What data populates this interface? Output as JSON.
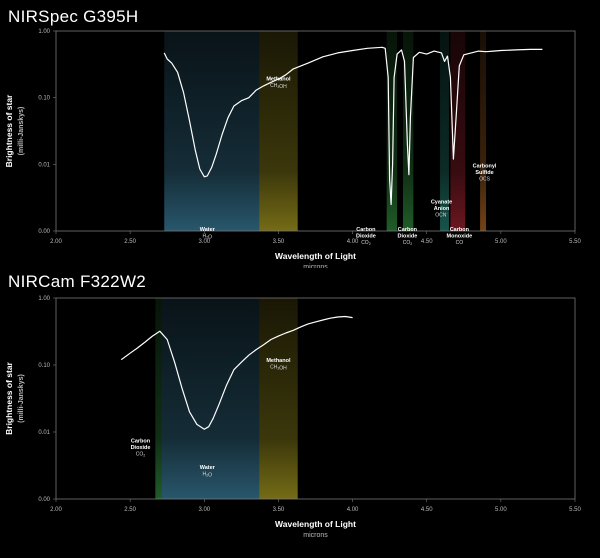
{
  "chart_data": [
    {
      "type": "line",
      "title": "NIRSpec G395H",
      "xlabel": "Wavelength of Light",
      "xlabel_sub": "microns",
      "ylabel": "Brightness of star",
      "ylabel_sub": "(milli-Janskys)",
      "xlim": [
        2.0,
        5.5
      ],
      "ylim": [
        0,
        1.0
      ],
      "y_scale": "log",
      "x_ticks": [
        "2.00",
        "2.50",
        "3.00",
        "3.50",
        "4.00",
        "4.50",
        "5.00",
        "5.50"
      ],
      "y_ticks": [
        "1.00",
        "0.10",
        "0.01",
        "0.00"
      ],
      "bands": [
        {
          "label": "Water",
          "sub": "H2O",
          "x0": 2.73,
          "x1": 3.37,
          "color": "#4a9ec4",
          "label_x": 3.02,
          "label_y": 0.00075
        },
        {
          "label": "Methanol",
          "sub": "CH3OH",
          "x0": 3.37,
          "x1": 3.63,
          "color": "#d4c428",
          "label_x": 3.5,
          "label_y": 0.18
        },
        {
          "label": "Carbon\nDioxide",
          "sub": "CO2",
          "x0": 4.23,
          "x1": 4.3,
          "color": "#3aa84a",
          "label_x": 4.09,
          "label_y": 0.0006
        },
        {
          "label": "Carbon\nDioxide",
          "sub": "CO2",
          "x0": 4.34,
          "x1": 4.41,
          "color": "#3aa84a",
          "label_x": 4.37,
          "label_y": 0.0006
        },
        {
          "label": "Cyanate\nAnion",
          "sub": "OCN-",
          "x0": 4.59,
          "x1": 4.65,
          "color": "#2a9a8a",
          "label_x": 4.6,
          "label_y": 0.0026
        },
        {
          "label": "Carbon\nMonoxide",
          "sub": "CO",
          "x0": 4.66,
          "x1": 4.76,
          "color": "#c42a3a",
          "label_x": 4.72,
          "label_y": 0.0006
        },
        {
          "label": "Carbonyl\nSulfide",
          "sub": "OCS",
          "x0": 4.86,
          "x1": 4.9,
          "color": "#d47a2a",
          "label_x": 4.89,
          "label_y": 0.009
        }
      ],
      "series": [
        {
          "x": [
            2.73,
            2.75,
            2.78,
            2.82,
            2.86,
            2.9,
            2.94,
            2.97,
            3.0,
            3.02,
            3.05,
            3.08,
            3.12,
            3.16,
            3.2,
            3.25,
            3.3,
            3.35,
            3.4,
            3.45,
            3.5,
            3.55,
            3.6,
            3.7,
            3.8,
            3.9,
            4.0,
            4.1,
            4.2,
            4.22,
            4.24,
            4.25,
            4.26,
            4.27,
            4.28,
            4.3,
            4.33,
            4.35,
            4.37,
            4.38,
            4.39,
            4.41,
            4.45,
            4.5,
            4.55,
            4.6,
            4.62,
            4.64,
            4.66,
            4.67,
            4.68,
            4.7,
            4.72,
            4.75,
            4.8,
            4.85,
            4.9,
            4.95,
            5.0,
            5.1,
            5.2,
            5.28
          ],
          "y": [
            0.47,
            0.38,
            0.33,
            0.24,
            0.12,
            0.045,
            0.016,
            0.0085,
            0.0065,
            0.0067,
            0.009,
            0.014,
            0.028,
            0.05,
            0.075,
            0.09,
            0.1,
            0.13,
            0.15,
            0.17,
            0.19,
            0.22,
            0.27,
            0.33,
            0.41,
            0.47,
            0.51,
            0.55,
            0.57,
            0.55,
            0.2,
            0.006,
            0.0025,
            0.01,
            0.2,
            0.45,
            0.52,
            0.35,
            0.02,
            0.007,
            0.05,
            0.4,
            0.48,
            0.45,
            0.5,
            0.47,
            0.35,
            0.42,
            0.2,
            0.05,
            0.012,
            0.06,
            0.3,
            0.44,
            0.47,
            0.5,
            0.49,
            0.5,
            0.51,
            0.52,
            0.53,
            0.53
          ]
        }
      ]
    },
    {
      "type": "line",
      "title": "NIRCam F322W2",
      "xlabel": "Wavelength of Light",
      "xlabel_sub": "microns",
      "ylabel": "Brightness of star",
      "ylabel_sub": "(milli-Janskys)",
      "xlim": [
        2.0,
        5.5
      ],
      "ylim": [
        0,
        1.0
      ],
      "y_scale": "log",
      "x_ticks": [
        "2.00",
        "2.50",
        "3.00",
        "3.50",
        "4.00",
        "4.50",
        "5.00",
        "5.50"
      ],
      "y_ticks": [
        "1.00",
        "0.10",
        "0.01",
        "0.00"
      ],
      "bands": [
        {
          "label": "Carbon\nDioxide",
          "sub": "CO2",
          "x0": 2.67,
          "x1": 2.71,
          "color": "#3aa84a",
          "label_x": 2.57,
          "label_y": 0.007
        },
        {
          "label": "Water",
          "sub": "H2O",
          "x0": 2.71,
          "x1": 3.37,
          "color": "#4a9ec4",
          "label_x": 3.02,
          "label_y": 0.0028
        },
        {
          "label": "Methanol",
          "sub": "CH3OH",
          "x0": 3.37,
          "x1": 3.63,
          "color": "#d4c428",
          "label_x": 3.5,
          "label_y": 0.11
        }
      ],
      "series": [
        {
          "x": [
            2.44,
            2.5,
            2.55,
            2.6,
            2.65,
            2.7,
            2.75,
            2.8,
            2.85,
            2.9,
            2.95,
            3.0,
            3.03,
            3.06,
            3.1,
            3.15,
            3.2,
            3.25,
            3.3,
            3.35,
            3.4,
            3.45,
            3.5,
            3.55,
            3.6,
            3.65,
            3.7,
            3.75,
            3.8,
            3.85,
            3.9,
            3.95,
            4.0
          ],
          "y": [
            0.12,
            0.15,
            0.18,
            0.22,
            0.27,
            0.32,
            0.24,
            0.11,
            0.045,
            0.02,
            0.013,
            0.011,
            0.012,
            0.016,
            0.026,
            0.05,
            0.085,
            0.11,
            0.14,
            0.17,
            0.2,
            0.24,
            0.27,
            0.3,
            0.33,
            0.37,
            0.41,
            0.44,
            0.47,
            0.5,
            0.52,
            0.53,
            0.51
          ]
        }
      ]
    }
  ]
}
